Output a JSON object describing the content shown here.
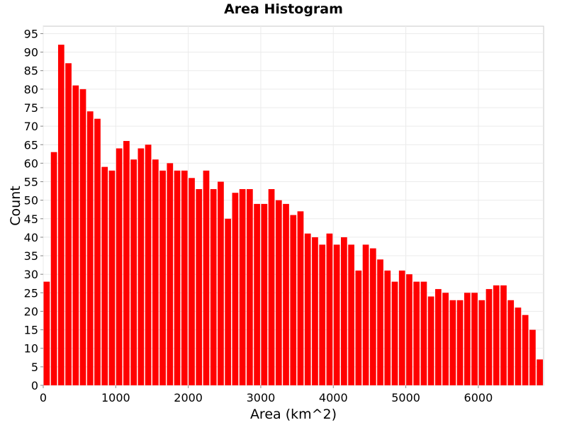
{
  "chart_data": {
    "type": "bar",
    "title": "Area Histogram",
    "xlabel": "Area (km^2)",
    "ylabel": "Count",
    "bin_width": 100,
    "xlim": [
      0,
      6900
    ],
    "ylim": [
      0,
      97
    ],
    "xticks": [
      0,
      1000,
      2000,
      3000,
      4000,
      5000,
      6000
    ],
    "yticks": [
      0,
      5,
      10,
      15,
      20,
      25,
      30,
      35,
      40,
      45,
      50,
      55,
      60,
      65,
      70,
      75,
      80,
      85,
      90,
      95
    ],
    "bin_starts": [
      0,
      100,
      200,
      300,
      400,
      500,
      600,
      700,
      800,
      900,
      1000,
      1100,
      1200,
      1300,
      1400,
      1500,
      1600,
      1700,
      1800,
      1900,
      2000,
      2100,
      2200,
      2300,
      2400,
      2500,
      2600,
      2700,
      2800,
      2900,
      3000,
      3100,
      3200,
      3300,
      3400,
      3500,
      3600,
      3700,
      3800,
      3900,
      4000,
      4100,
      4200,
      4300,
      4400,
      4500,
      4600,
      4700,
      4800,
      4900,
      5000,
      5100,
      5200,
      5300,
      5400,
      5500,
      5600,
      5700,
      5800,
      5900,
      6000,
      6100,
      6200,
      6300,
      6400,
      6500,
      6600,
      6700,
      6800
    ],
    "values": [
      28,
      63,
      92,
      87,
      81,
      80,
      74,
      72,
      59,
      58,
      64,
      66,
      61,
      64,
      65,
      61,
      58,
      60,
      58,
      58,
      56,
      53,
      58,
      53,
      55,
      45,
      52,
      53,
      53,
      49,
      49,
      53,
      50,
      49,
      46,
      47,
      41,
      40,
      38,
      41,
      38,
      40,
      38,
      31,
      38,
      37,
      34,
      31,
      28,
      31,
      30,
      28,
      28,
      24,
      26,
      25,
      23,
      23,
      25,
      25,
      23,
      26,
      27,
      27,
      23,
      21,
      19,
      15,
      7
    ],
    "bar_color": "#ff0000",
    "grid": true
  }
}
